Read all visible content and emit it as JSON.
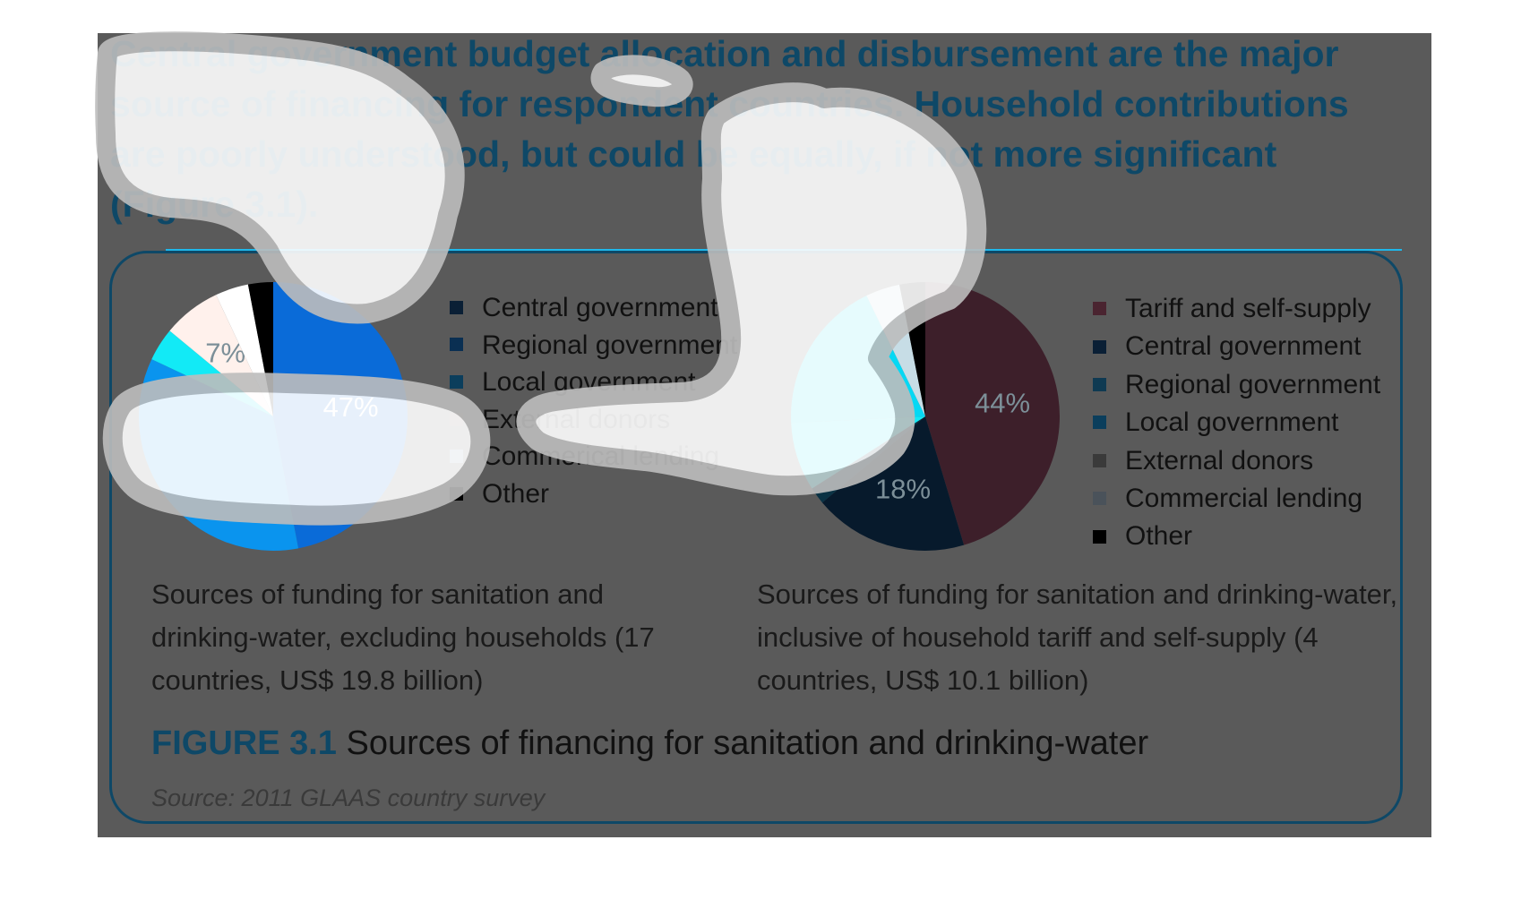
{
  "headline": "Central government budget allocation and disbursement are the major source of financing for respondent countries. Household contributions are poorly understood, but could be equally, if not more significant (Figure 3.1).",
  "figure": {
    "number": "FIGURE 3.1",
    "title": "Sources of financing for sanitation and drinking-water",
    "source": "Source: 2011 GLAAS country survey"
  },
  "colors": {
    "panel_background": "#5a5a5a",
    "headline_text": "#0e4867",
    "highlight": "#ffffff",
    "highlight_edge": "#bdbdbd"
  },
  "chart_data": [
    {
      "type": "pie",
      "caption": "Sources of funding for sanitation and drinking-water, excluding households (17 countries, US$ 19.8 billion)",
      "categories": [
        "Central government",
        "Regional government",
        "Local government",
        "External donors",
        "Commerical lending",
        "Other"
      ],
      "values": [
        47,
        35,
        4,
        7,
        4,
        3
      ],
      "data_labels": [
        "47%",
        "",
        "",
        "7%",
        "",
        ""
      ],
      "colors": [
        "#0a6bd8",
        "#0a94ee",
        "#083a5a",
        "#4a3e3e",
        "#737373",
        "#000000"
      ],
      "highlight_colors": [
        "#0a6bd8",
        "#0a94ee",
        "#12eaf6",
        "#fff1ec",
        "#ffffff",
        "#000000"
      ],
      "legend_swatch_colors": [
        "#0a1f35",
        "#0a2f52",
        "#0b3e5c",
        "#6b5a55",
        "#7a97a8",
        "#000000"
      ],
      "legend_position": "right"
    },
    {
      "type": "pie",
      "caption": "Sources of funding for sanitation and drinking-water, inclusive of household tariff and self-supply (4 countries, US$ 10.1 billion)",
      "categories": [
        "Tariff and self-supply",
        "Central government",
        "Regional government",
        "Local government",
        "External donors",
        "Commercial lending",
        "Other"
      ],
      "values": [
        44,
        18,
        2,
        8,
        18,
        4,
        3
      ],
      "data_labels": [
        "44%",
        "18%",
        "",
        "",
        "",
        "",
        ""
      ],
      "colors": [
        "#3d1f2a",
        "#071a2c",
        "#0a3244",
        "#073c56",
        "#2d2d2d",
        "#3d4850",
        "#000000"
      ],
      "highlight_colors": [
        "#3d1f2a",
        "#071a2c",
        "#0a3244",
        "#12eaf6",
        "#06d8f4",
        "#c7dde6",
        "#000000"
      ],
      "legend_swatch_colors": [
        "#4a2430",
        "#0a1f35",
        "#0f3a52",
        "#0b3e5c",
        "#3a3a3a",
        "#4a525a",
        "#000000"
      ],
      "legend_position": "right"
    }
  ]
}
